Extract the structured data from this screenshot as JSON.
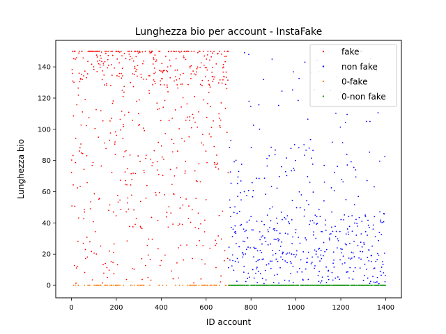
{
  "chart_data": {
    "type": "scatter",
    "title": "Lunghezza bio per account - InstaFake",
    "xlabel": "ID account",
    "ylabel": "Lunghezza bio",
    "xlim": [
      -70,
      1470
    ],
    "ylim": [
      -8,
      157
    ],
    "grid": false,
    "legend_position": "top-right",
    "xticks": [
      "0",
      "200",
      "400",
      "600",
      "800",
      "1000",
      "1200",
      "1400"
    ],
    "yticks": [
      "0",
      "20",
      "40",
      "60",
      "80",
      "100",
      "120",
      "140"
    ],
    "series": [
      {
        "name": "fake",
        "color": "#ff0000",
        "id_range": [
          0,
          700
        ],
        "values_range": [
          1,
          150
        ],
        "approx_count": 620,
        "description_note": "accounts 0-700 with non-zero bio length, dense near 130-150"
      },
      {
        "name": "non fake",
        "color": "#0000ff",
        "id_range": [
          700,
          1400
        ],
        "values_range": [
          1,
          150
        ],
        "approx_count": 520,
        "description_note": "accounts 700-1400 with non-zero bio length, mostly 0-45"
      },
      {
        "name": "0-fake",
        "color": "#ff7f0e",
        "id_range": [
          0,
          700
        ],
        "values": 0,
        "approx_count": 70
      },
      {
        "name": "0-non fake",
        "color": "#2ca02c",
        "id_range": [
          700,
          1400
        ],
        "values": 0,
        "approx_count": 450
      }
    ]
  }
}
